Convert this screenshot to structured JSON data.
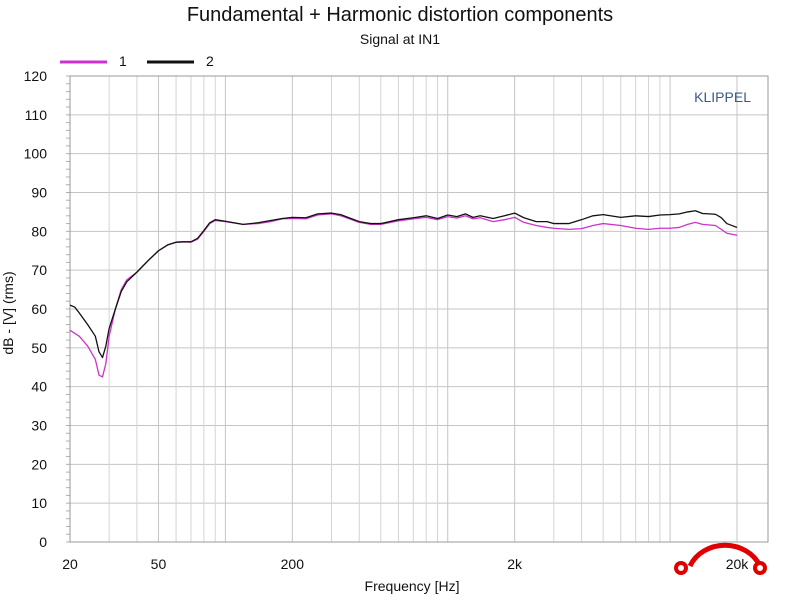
{
  "chart_data": {
    "type": "line",
    "title": "Fundamental + Harmonic distortion components",
    "subtitle": "Signal at IN1",
    "xlabel": "Frequency [Hz]",
    "ylabel": "dB - [V] (rms)",
    "xscale": "log",
    "xlim": [
      20,
      20000
    ],
    "ylim": [
      0,
      120
    ],
    "x_ticks": [
      20,
      50,
      200,
      2000,
      20000
    ],
    "x_tick_labels": [
      "20",
      "50",
      "200",
      "2k",
      "20k"
    ],
    "y_ticks": [
      0,
      10,
      20,
      30,
      40,
      50,
      60,
      70,
      80,
      90,
      100,
      110,
      120
    ],
    "y_tick_labels": [
      "0",
      "10",
      "20",
      "30",
      "40",
      "50",
      "60",
      "70",
      "80",
      "90",
      "100",
      "110",
      "120"
    ],
    "grid": true,
    "legend_position": "top-left",
    "brand": "KLIPPEL",
    "series": [
      {
        "name": "1",
        "color": "#cc33cc",
        "points": [
          [
            20,
            54.5
          ],
          [
            22,
            53
          ],
          [
            24,
            50.5
          ],
          [
            26,
            47
          ],
          [
            27,
            43
          ],
          [
            28,
            42.5
          ],
          [
            29,
            46
          ],
          [
            30,
            53
          ],
          [
            32,
            60
          ],
          [
            34,
            65
          ],
          [
            36,
            67.5
          ],
          [
            40,
            69.5
          ],
          [
            45,
            72.5
          ],
          [
            50,
            75
          ],
          [
            55,
            76.5
          ],
          [
            60,
            77.2
          ],
          [
            65,
            77.3
          ],
          [
            70,
            77.2
          ],
          [
            75,
            78
          ],
          [
            80,
            80
          ],
          [
            85,
            82
          ],
          [
            90,
            82.8
          ],
          [
            100,
            82.5
          ],
          [
            120,
            81.8
          ],
          [
            140,
            82
          ],
          [
            160,
            82.5
          ],
          [
            180,
            83.2
          ],
          [
            200,
            83.3
          ],
          [
            230,
            83.2
          ],
          [
            260,
            84.2
          ],
          [
            300,
            84.5
          ],
          [
            330,
            84
          ],
          [
            400,
            82.3
          ],
          [
            450,
            81.8
          ],
          [
            500,
            81.8
          ],
          [
            600,
            82.7
          ],
          [
            700,
            83.2
          ],
          [
            800,
            83.6
          ],
          [
            900,
            83
          ],
          [
            1000,
            83.8
          ],
          [
            1100,
            83.4
          ],
          [
            1200,
            84
          ],
          [
            1300,
            83.2
          ],
          [
            1400,
            83.5
          ],
          [
            1600,
            82.5
          ],
          [
            1800,
            83
          ],
          [
            2000,
            83.6
          ],
          [
            2200,
            82.3
          ],
          [
            2500,
            81.5
          ],
          [
            2800,
            81
          ],
          [
            3000,
            80.8
          ],
          [
            3500,
            80.5
          ],
          [
            4000,
            80.7
          ],
          [
            4500,
            81.5
          ],
          [
            5000,
            82
          ],
          [
            6000,
            81.5
          ],
          [
            7000,
            80.8
          ],
          [
            8000,
            80.5
          ],
          [
            9000,
            80.8
          ],
          [
            10000,
            80.8
          ],
          [
            11000,
            81
          ],
          [
            12000,
            81.8
          ],
          [
            13000,
            82.3
          ],
          [
            14000,
            81.8
          ],
          [
            16000,
            81.5
          ],
          [
            17000,
            80.5
          ],
          [
            18000,
            79.5
          ],
          [
            20000,
            79
          ]
        ]
      },
      {
        "name": "2",
        "color": "#111111",
        "points": [
          [
            20,
            61
          ],
          [
            21,
            60.5
          ],
          [
            22,
            59
          ],
          [
            24,
            56
          ],
          [
            26,
            53
          ],
          [
            27,
            49
          ],
          [
            28,
            47.5
          ],
          [
            29,
            50.5
          ],
          [
            30,
            55
          ],
          [
            32,
            60
          ],
          [
            34,
            64.5
          ],
          [
            36,
            67
          ],
          [
            40,
            69.5
          ],
          [
            45,
            72.5
          ],
          [
            50,
            75
          ],
          [
            55,
            76.5
          ],
          [
            60,
            77.2
          ],
          [
            65,
            77.3
          ],
          [
            70,
            77.3
          ],
          [
            75,
            78.2
          ],
          [
            80,
            80.2
          ],
          [
            85,
            82.2
          ],
          [
            90,
            83
          ],
          [
            100,
            82.6
          ],
          [
            120,
            81.8
          ],
          [
            140,
            82.2
          ],
          [
            160,
            82.8
          ],
          [
            180,
            83.3
          ],
          [
            200,
            83.6
          ],
          [
            230,
            83.5
          ],
          [
            260,
            84.5
          ],
          [
            300,
            84.7
          ],
          [
            330,
            84.3
          ],
          [
            400,
            82.5
          ],
          [
            450,
            82
          ],
          [
            500,
            82
          ],
          [
            600,
            83
          ],
          [
            700,
            83.5
          ],
          [
            800,
            84
          ],
          [
            900,
            83.3
          ],
          [
            1000,
            84.2
          ],
          [
            1100,
            83.8
          ],
          [
            1200,
            84.5
          ],
          [
            1300,
            83.6
          ],
          [
            1400,
            84
          ],
          [
            1600,
            83.3
          ],
          [
            1800,
            84
          ],
          [
            2000,
            84.7
          ],
          [
            2200,
            83.5
          ],
          [
            2500,
            82.5
          ],
          [
            2800,
            82.5
          ],
          [
            3000,
            82
          ],
          [
            3500,
            82
          ],
          [
            4000,
            83
          ],
          [
            4500,
            84
          ],
          [
            5000,
            84.3
          ],
          [
            6000,
            83.6
          ],
          [
            7000,
            84
          ],
          [
            8000,
            83.8
          ],
          [
            9000,
            84.2
          ],
          [
            10000,
            84.3
          ],
          [
            11000,
            84.5
          ],
          [
            12000,
            85
          ],
          [
            13000,
            85.3
          ],
          [
            14000,
            84.6
          ],
          [
            16000,
            84.4
          ],
          [
            17000,
            83.5
          ],
          [
            18000,
            82
          ],
          [
            20000,
            81
          ]
        ]
      }
    ]
  }
}
